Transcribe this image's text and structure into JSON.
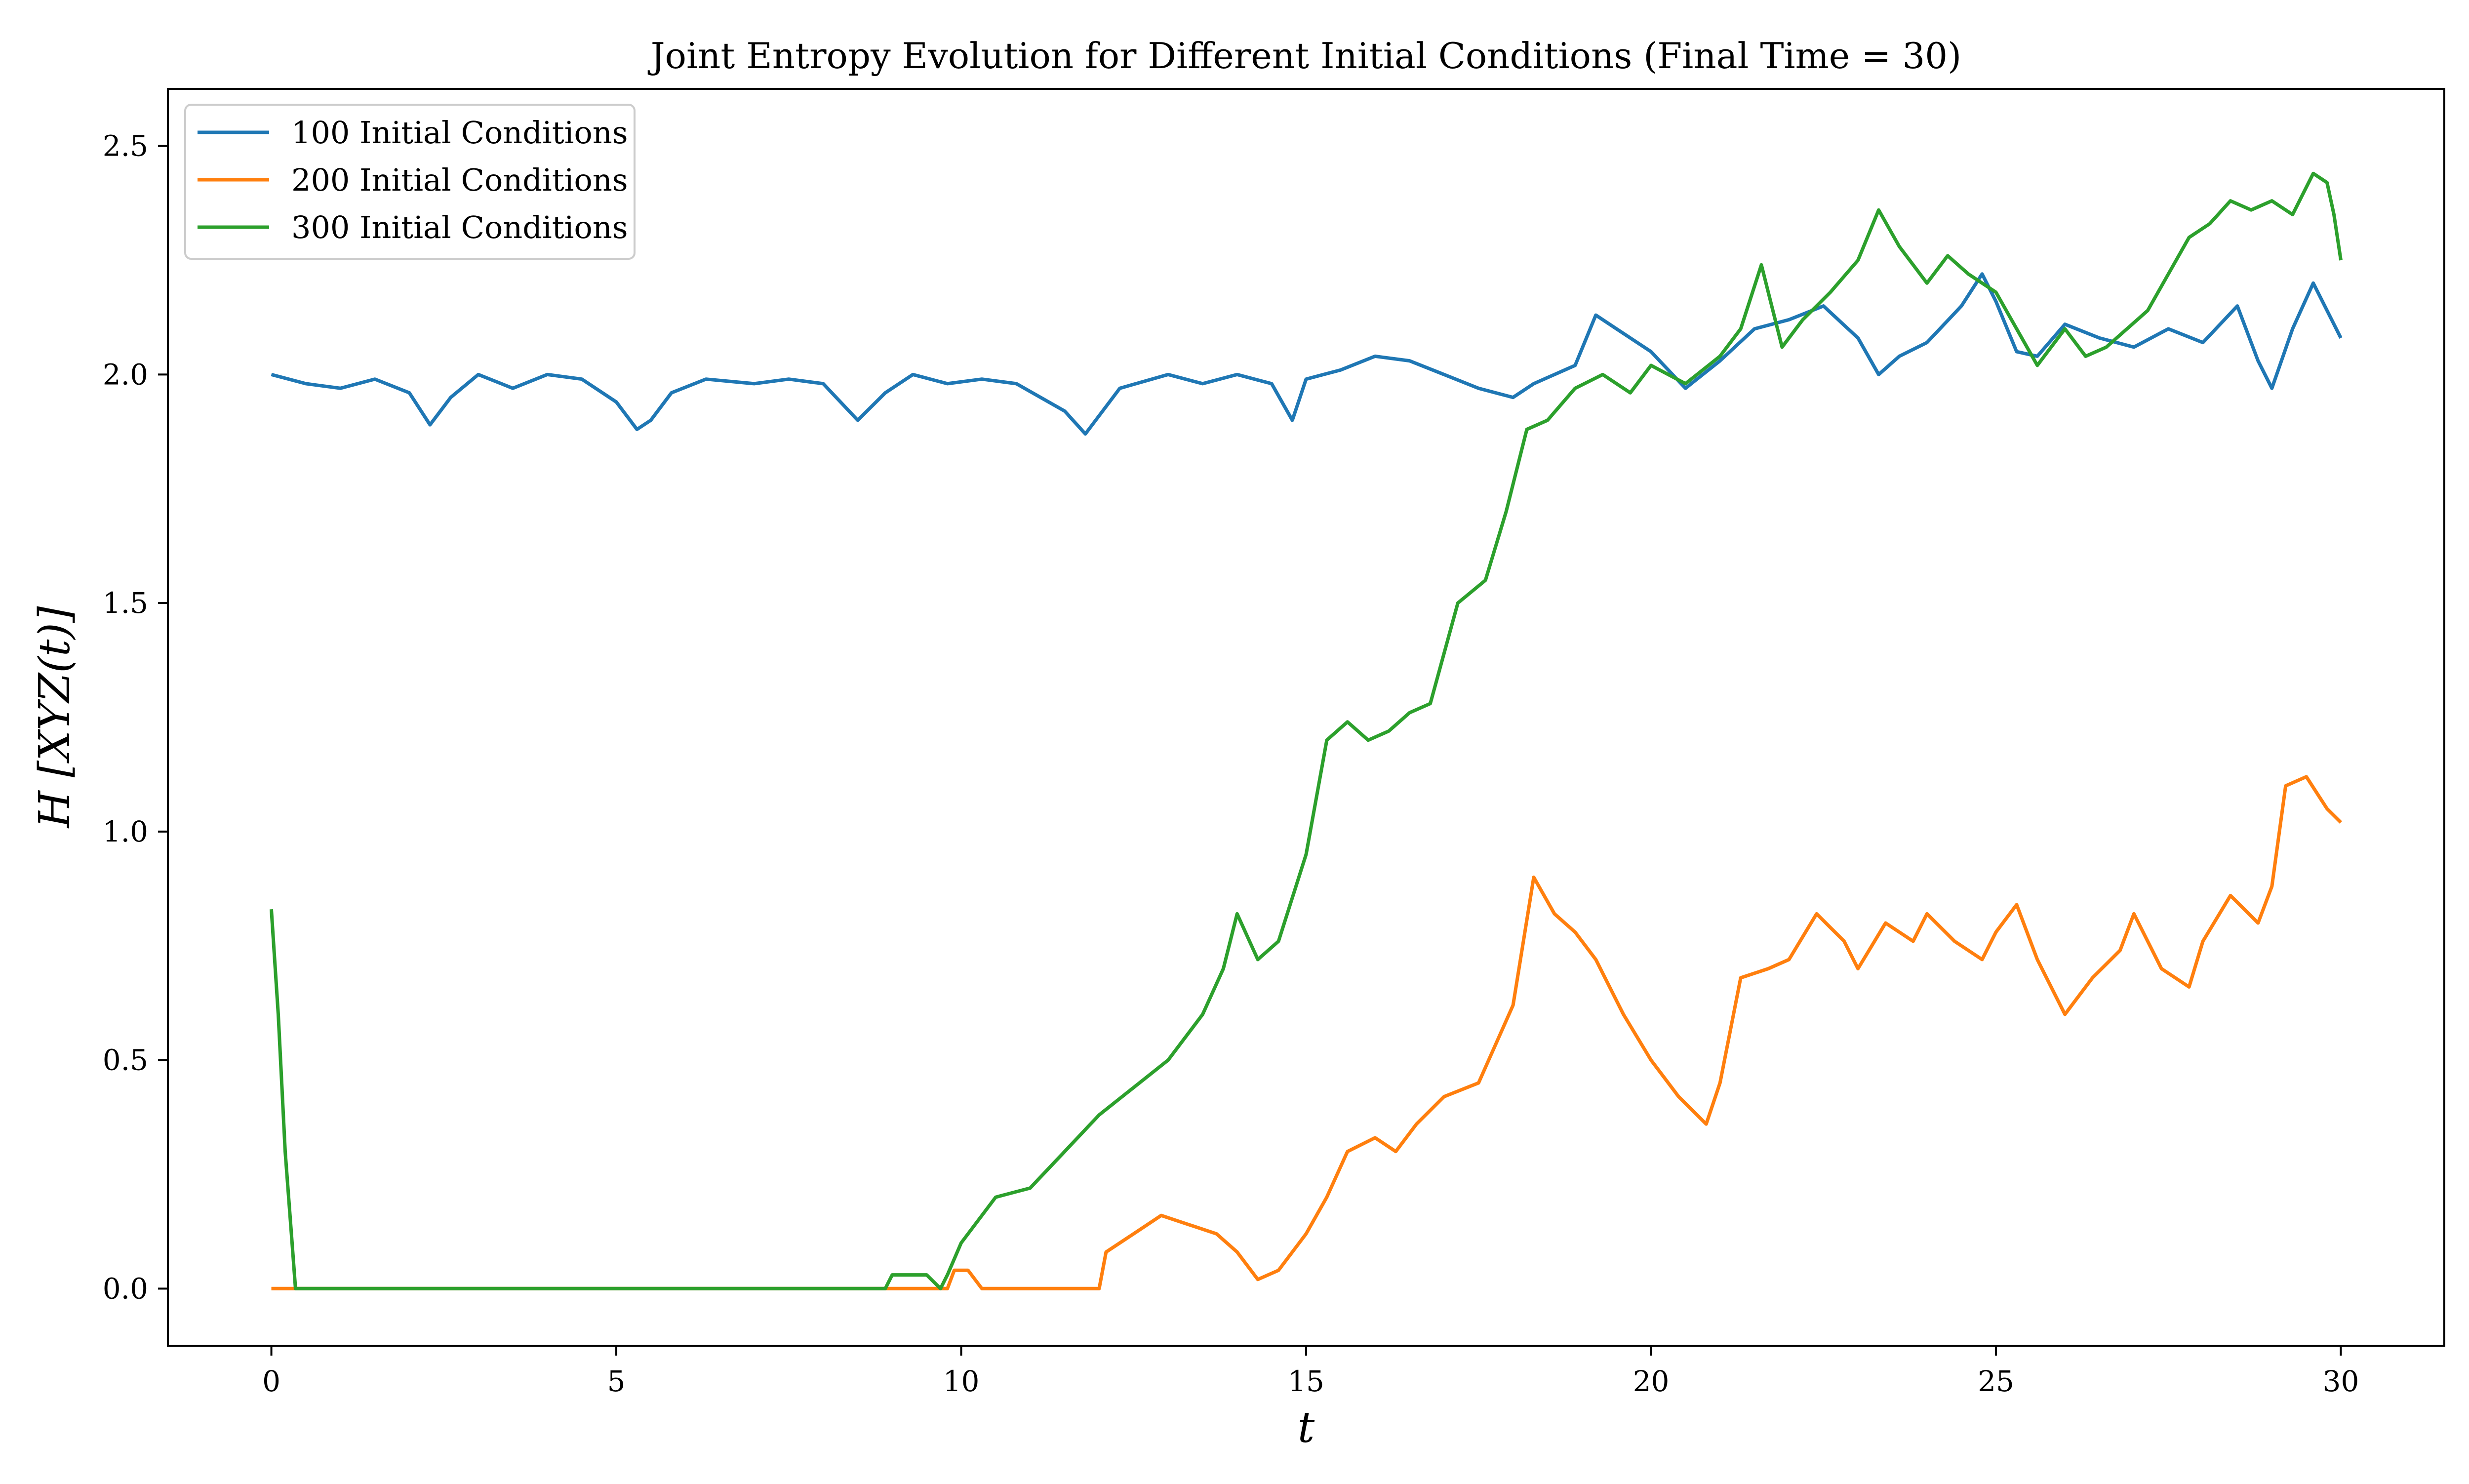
{
  "chart_data": {
    "type": "line",
    "title": "Joint Entropy Evolution for Different Initial Conditions (Final Time = 30)",
    "xlabel": "t",
    "ylabel": "H [XYZ(t)]",
    "xlim": [
      -1.5,
      31.5
    ],
    "ylim": [
      -0.125,
      2.625
    ],
    "xticks": [
      0,
      5,
      10,
      15,
      20,
      25,
      30
    ],
    "xtick_labels": [
      "0",
      "5",
      "10",
      "15",
      "20",
      "25",
      "30"
    ],
    "yticks": [
      0.0,
      0.5,
      1.0,
      1.5,
      2.0,
      2.5
    ],
    "ytick_labels": [
      "0.0",
      "0.5",
      "1.0",
      "1.5",
      "2.0",
      "2.5"
    ],
    "grid": false,
    "legend_position": "top-left",
    "series": [
      {
        "name": "100 Initial Conditions",
        "color": "#1f77b4",
        "x": [
          0,
          0.5,
          1.0,
          1.5,
          2.0,
          2.3,
          2.6,
          3.0,
          3.5,
          4.0,
          4.5,
          5.0,
          5.3,
          5.5,
          5.8,
          6.3,
          7.0,
          7.5,
          8.0,
          8.5,
          8.9,
          9.3,
          9.8,
          10.3,
          10.8,
          11.5,
          11.8,
          12.3,
          13.0,
          13.5,
          14.0,
          14.5,
          14.8,
          15.0,
          15.5,
          16.0,
          16.5,
          17.0,
          17.5,
          18.0,
          18.3,
          18.6,
          18.9,
          19.2,
          19.5,
          20.0,
          20.5,
          21.0,
          21.5,
          22.0,
          22.5,
          23.0,
          23.3,
          23.6,
          24.0,
          24.5,
          24.8,
          25.0,
          25.3,
          25.6,
          26.0,
          26.5,
          27.0,
          27.5,
          28.0,
          28.5,
          28.8,
          29.0,
          29.3,
          29.6,
          30.0
        ],
        "y": [
          2.0,
          1.98,
          1.97,
          1.99,
          1.96,
          1.89,
          1.95,
          2.0,
          1.97,
          2.0,
          1.99,
          1.94,
          1.88,
          1.9,
          1.96,
          1.99,
          1.98,
          1.99,
          1.98,
          1.9,
          1.96,
          2.0,
          1.98,
          1.99,
          1.98,
          1.92,
          1.87,
          1.97,
          2.0,
          1.98,
          2.0,
          1.98,
          1.9,
          1.99,
          2.01,
          2.04,
          2.03,
          2.0,
          1.97,
          1.95,
          1.98,
          2.0,
          2.02,
          2.13,
          2.1,
          2.05,
          1.97,
          2.03,
          2.1,
          2.12,
          2.15,
          2.08,
          2.0,
          2.04,
          2.07,
          2.15,
          2.22,
          2.16,
          2.05,
          2.04,
          2.11,
          2.08,
          2.06,
          2.1,
          2.07,
          2.15,
          2.03,
          1.97,
          2.1,
          2.2,
          2.08
        ]
      },
      {
        "name": "200 Initial Conditions",
        "color": "#ff7f0e",
        "x": [
          0,
          1,
          3,
          5,
          7,
          9.0,
          9.8,
          9.9,
          10.1,
          10.3,
          11.0,
          12.0,
          12.1,
          12.5,
          12.9,
          13.3,
          13.7,
          14.0,
          14.3,
          14.6,
          14.8,
          15.0,
          15.3,
          15.6,
          16.0,
          16.3,
          16.6,
          17.0,
          17.5,
          18.0,
          18.3,
          18.6,
          18.9,
          19.2,
          19.6,
          20.0,
          20.4,
          20.8,
          21.0,
          21.3,
          21.7,
          22.0,
          22.4,
          22.8,
          23.0,
          23.4,
          23.8,
          24.0,
          24.4,
          24.8,
          25.0,
          25.3,
          25.6,
          26.0,
          26.4,
          26.8,
          27.0,
          27.4,
          27.8,
          28.0,
          28.4,
          28.8,
          29.0,
          29.2,
          29.5,
          29.8,
          30.0
        ],
        "y": [
          0.0,
          0.0,
          0.0,
          0.0,
          0.0,
          0.0,
          0.0,
          0.04,
          0.04,
          0.0,
          0.0,
          0.0,
          0.08,
          0.12,
          0.16,
          0.14,
          0.12,
          0.08,
          0.02,
          0.04,
          0.08,
          0.12,
          0.2,
          0.3,
          0.33,
          0.3,
          0.36,
          0.42,
          0.45,
          0.62,
          0.9,
          0.82,
          0.78,
          0.72,
          0.6,
          0.5,
          0.42,
          0.36,
          0.45,
          0.68,
          0.7,
          0.72,
          0.82,
          0.76,
          0.7,
          0.8,
          0.76,
          0.82,
          0.76,
          0.72,
          0.78,
          0.84,
          0.72,
          0.6,
          0.68,
          0.74,
          0.82,
          0.7,
          0.66,
          0.76,
          0.86,
          0.8,
          0.88,
          1.1,
          1.12,
          1.05,
          1.02
        ]
      },
      {
        "name": "300 Initial Conditions",
        "color": "#2ca02c",
        "x": [
          0,
          0.1,
          0.2,
          0.3,
          0.35,
          1,
          3,
          5,
          7,
          8.9,
          9.0,
          9.5,
          9.7,
          9.8,
          10.0,
          10.5,
          11.0,
          11.5,
          12.0,
          12.5,
          13.0,
          13.5,
          13.8,
          14.0,
          14.3,
          14.6,
          15.0,
          15.3,
          15.6,
          15.9,
          16.2,
          16.5,
          16.8,
          17.2,
          17.6,
          17.9,
          18.2,
          18.5,
          18.9,
          19.3,
          19.7,
          20.0,
          20.5,
          21.0,
          21.3,
          21.6,
          21.9,
          22.2,
          22.6,
          23.0,
          23.3,
          23.6,
          24.0,
          24.3,
          24.6,
          25.0,
          25.3,
          25.6,
          26.0,
          26.3,
          26.6,
          26.9,
          27.2,
          27.5,
          27.8,
          28.1,
          28.4,
          28.7,
          29.0,
          29.3,
          29.6,
          29.8,
          29.9,
          30.0
        ],
        "y": [
          0.83,
          0.6,
          0.3,
          0.1,
          0.0,
          0.0,
          0.0,
          0.0,
          0.0,
          0.0,
          0.03,
          0.03,
          0.0,
          0.03,
          0.1,
          0.2,
          0.22,
          0.3,
          0.38,
          0.44,
          0.5,
          0.6,
          0.7,
          0.82,
          0.72,
          0.76,
          0.95,
          1.2,
          1.24,
          1.2,
          1.22,
          1.26,
          1.28,
          1.5,
          1.55,
          1.7,
          1.88,
          1.9,
          1.97,
          2.0,
          1.96,
          2.02,
          1.98,
          2.04,
          2.1,
          2.24,
          2.06,
          2.12,
          2.18,
          2.25,
          2.36,
          2.28,
          2.2,
          2.26,
          2.22,
          2.18,
          2.1,
          2.02,
          2.1,
          2.04,
          2.06,
          2.1,
          2.14,
          2.22,
          2.3,
          2.33,
          2.38,
          2.36,
          2.38,
          2.35,
          2.44,
          2.42,
          2.35,
          2.25
        ]
      }
    ]
  }
}
